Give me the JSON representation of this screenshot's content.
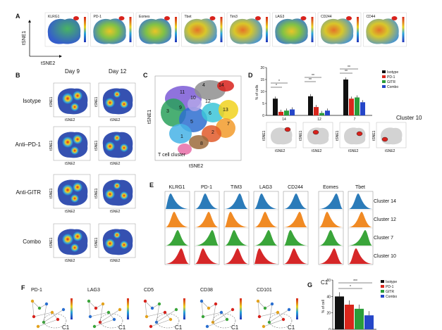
{
  "panels": {
    "A": {
      "letter": "A",
      "markers": [
        "KLRG1",
        "PD-1",
        "Eomes",
        "Tbet",
        "Tim3",
        "LAG3",
        "CD244",
        "CD44"
      ],
      "y_axis": "tSNE1",
      "x_axis": "tSNE2"
    },
    "B": {
      "letter": "B",
      "columns": [
        "Day 9",
        "Day 12"
      ],
      "rows": [
        "Isotype",
        "Anti–PD-1",
        "Anti-GITR",
        "Combo"
      ],
      "axis_y": "tSNE1",
      "axis_x": "tSNE2"
    },
    "C": {
      "letter": "C",
      "clusters": [
        "1",
        "2",
        "3",
        "4",
        "5",
        "6",
        "7",
        "8",
        "9",
        "10",
        "11",
        "12",
        "13",
        "14"
      ],
      "caption": "T cell cluster",
      "axis_y": "tSNE1",
      "axis_x": "tSNE2"
    },
    "D": {
      "letter": "D",
      "cluster_label": "Cluster 10",
      "thumb_axis_y": "tSNE1",
      "thumb_axis_x": "tSNE2"
    },
    "E": {
      "letter": "E",
      "markers": [
        "KLRG1",
        "PD-1",
        "TIM3",
        "LAG3",
        "CD244",
        "Eomes",
        "Tbet"
      ],
      "rows": [
        "Cluster 14",
        "Cluster 12",
        "Cluster 7",
        "Cluster 10"
      ]
    },
    "F": {
      "letter": "F",
      "markers": [
        "PD-1",
        "LAG3",
        "CD5",
        "CD38",
        "CD101"
      ],
      "region_label": "C1"
    },
    "G": {
      "letter": "G",
      "title": "C1",
      "sig_labels": [
        "***",
        "*"
      ]
    }
  },
  "colors": {
    "isotype": "#111111",
    "pd1": "#d9261c",
    "gitr": "#2a9d3a",
    "combo": "#2546c8",
    "hist_blue": "#2b7bb9",
    "hist_orange": "#f08a24",
    "hist_green": "#3aa53a",
    "hist_red": "#d62728"
  },
  "chart_data": [
    {
      "type": "bar",
      "panel": "D",
      "ylabel": "% of cells",
      "ylim": [
        0,
        20
      ],
      "yticks": [
        0,
        5,
        10,
        15,
        20
      ],
      "categories": [
        "14",
        "12",
        "7"
      ],
      "series": [
        {
          "name": "Isotype",
          "values": [
            7,
            8,
            15
          ]
        },
        {
          "name": "PD-1",
          "values": [
            1.5,
            3.5,
            7
          ]
        },
        {
          "name": "GITR",
          "values": [
            2,
            1,
            7.5
          ]
        },
        {
          "name": "Combo",
          "values": [
            2.5,
            2,
            5.5
          ]
        }
      ],
      "legend_position": "top-right",
      "significance": [
        "*",
        "*",
        "**",
        "**",
        "**",
        "**"
      ]
    },
    {
      "type": "bar",
      "panel": "G",
      "title": "C1",
      "ylabel": "% of cell",
      "ylim": [
        0,
        60
      ],
      "yticks": [
        0,
        20,
        40,
        60
      ],
      "categories": [
        "C1"
      ],
      "series": [
        {
          "name": "Isotype",
          "values": [
            40
          ]
        },
        {
          "name": "PD-1",
          "values": [
            30
          ]
        },
        {
          "name": "GITR",
          "values": [
            25
          ]
        },
        {
          "name": "Combo",
          "values": [
            17
          ]
        }
      ],
      "legend_position": "right",
      "significance": [
        "***",
        "*"
      ]
    }
  ]
}
